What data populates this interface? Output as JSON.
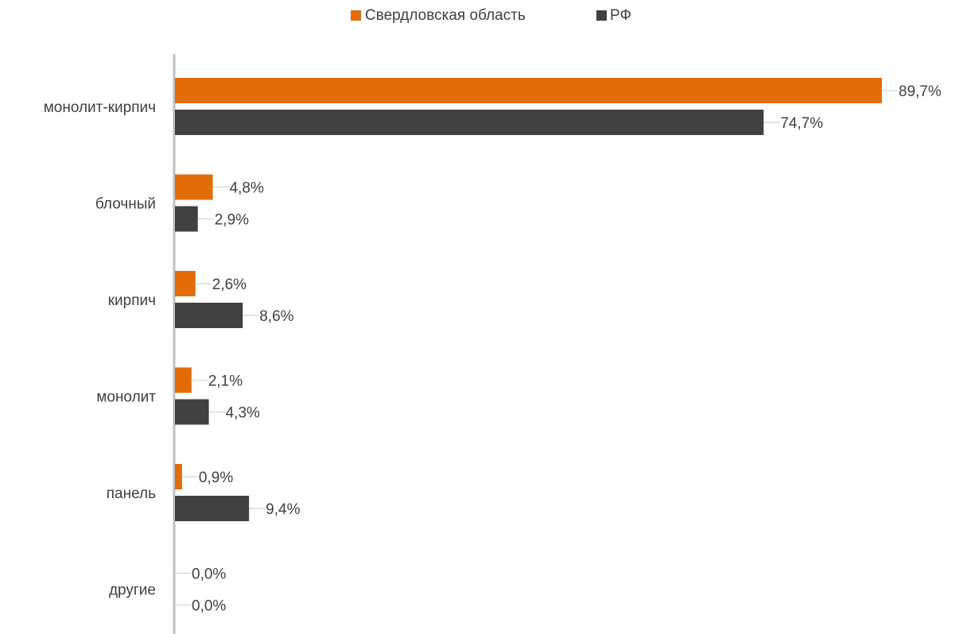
{
  "chart_data": {
    "type": "bar",
    "orientation": "horizontal",
    "categories": [
      "монолит-кирпич",
      "блочный",
      "кирпич",
      "монолит",
      "панель",
      "другие"
    ],
    "series": [
      {
        "name": "Свердловская область",
        "color": "#E36C0A",
        "values": [
          89.7,
          4.8,
          2.6,
          2.1,
          0.9,
          0.0
        ],
        "labels": [
          "89,7%",
          "4,8%",
          "2,6%",
          "2,1%",
          "0,9%",
          "0,0%"
        ]
      },
      {
        "name": "РФ",
        "color": "#404040",
        "values": [
          74.7,
          2.9,
          8.6,
          4.3,
          9.4,
          0.0
        ],
        "labels": [
          "74,7%",
          "2,9%",
          "8,6%",
          "4,3%",
          "9,4%",
          "0,0%"
        ]
      }
    ],
    "legend": "top-center",
    "grid": false,
    "xlim": [
      0,
      90
    ]
  }
}
